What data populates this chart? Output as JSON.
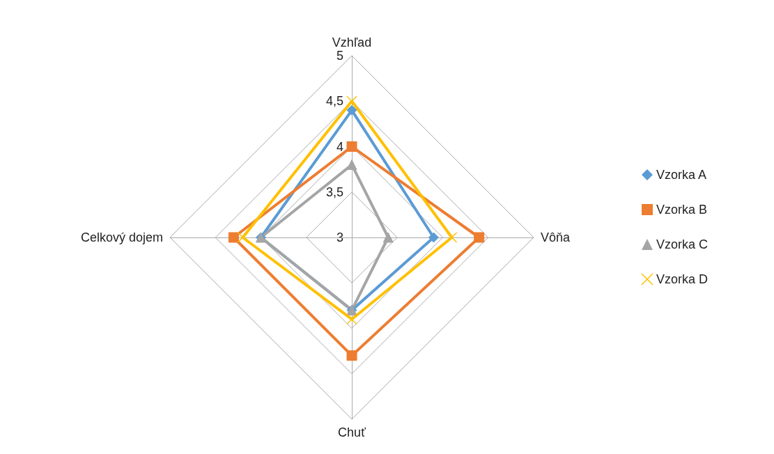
{
  "chart_data": {
    "type": "radar",
    "categories": [
      "Vzhľad",
      "Vôňa",
      "Chuť",
      "Celkový dojem"
    ],
    "ylim": [
      3,
      5
    ],
    "yticks": [
      3,
      {
        "value": 3.5,
        "label": "3,5"
      },
      4,
      {
        "value": 4.5,
        "label": "4,5"
      },
      5
    ],
    "legend": "right",
    "line_style": "solid",
    "series": [
      {
        "name": "Vzorka A",
        "color": "#5b9bd5",
        "marker": "diamond",
        "values": [
          4.4,
          3.9,
          3.8,
          4.0
        ]
      },
      {
        "name": "Vzorka B",
        "color": "#ed7d31",
        "marker": "square",
        "values": [
          4.0,
          4.4,
          4.3,
          4.3
        ]
      },
      {
        "name": "Vzorka C",
        "color": "#a5a5a5",
        "marker": "triangle",
        "values": [
          3.8,
          3.4,
          3.8,
          4.0
        ]
      },
      {
        "name": "Vzorka D",
        "color": "#ffc000",
        "marker": "cross",
        "values": [
          4.5,
          4.1,
          3.9,
          4.2
        ]
      }
    ]
  }
}
